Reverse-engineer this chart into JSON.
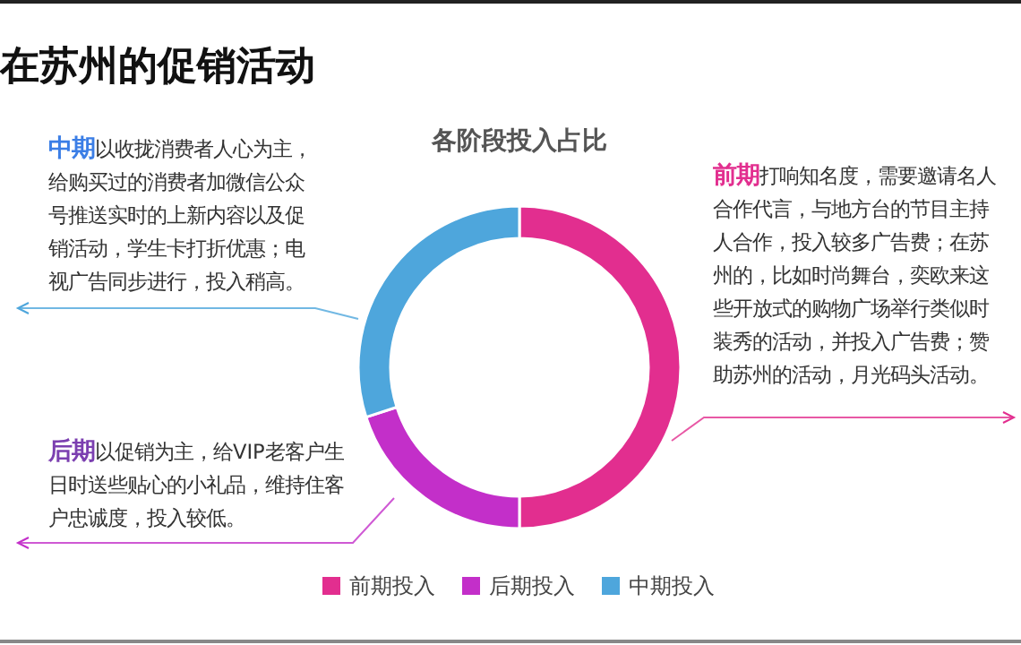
{
  "chart_data": {
    "type": "donut",
    "title": "各阶段投入占比",
    "subtitle": "在苏州的促销活动",
    "categories": [
      "前期投入",
      "后期投入",
      "中期投入"
    ],
    "values": [
      50,
      20,
      30
    ],
    "colors": [
      "#e22e8f",
      "#c32fc9",
      "#4ea6dc"
    ],
    "legend": "bottom",
    "annotations": [
      "中期以收拢消费者人心为主，给购买过的消费者加微信公众号推送实时的上新内容以及促销活动，学生卡打折优惠；电视广告同步进行，投入稍高。",
      "前期打响知名度，需要邀请名人合作代言，与地方台的节目主持人合作，投入较多广告费；在苏州的，比如时尚舞台，奕欧来这些开放式的购物广场举行类似时装秀的活动，并投入广告费；赞助苏州的活动，月光码头活动。",
      "后期以促销为主，给VIP老客户生日时送些贴心的小礼品，维持住客户忠诚度，投入较低。"
    ]
  }
}
